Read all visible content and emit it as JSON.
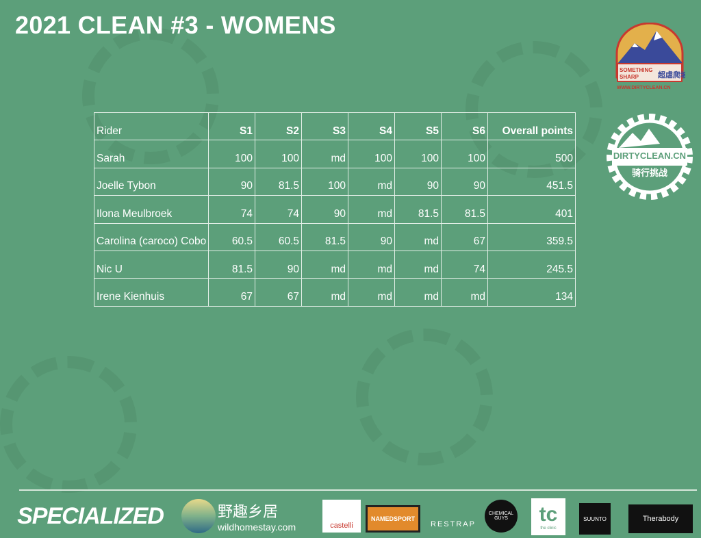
{
  "title": "2021 CLEAN #3 - WOMENS",
  "logos": {
    "top": {
      "line1": "SOMETHING",
      "line2": "SHARP",
      "cn": "超虐爬坡线",
      "url": "WWW.DIRTYCLEAN.CN"
    },
    "gear": {
      "name": "DIRTYCLEAN.CN",
      "cn": "骑行挑战"
    }
  },
  "table": {
    "headers": [
      "Rider",
      "S1",
      "S2",
      "S3",
      "S4",
      "S5",
      "S6",
      "Overall points"
    ],
    "rows": [
      [
        "Sarah",
        "100",
        "100",
        "md",
        "100",
        "100",
        "100",
        "500"
      ],
      [
        "Joelle Tybon",
        "90",
        "81.5",
        "100",
        "md",
        "90",
        "90",
        "451.5"
      ],
      [
        "Ilona Meulbroek",
        "74",
        "74",
        "90",
        "md",
        "81.5",
        "81.5",
        "401"
      ],
      [
        "Carolina (caroco) Cobo",
        "60.5",
        "60.5",
        "81.5",
        "90",
        "md",
        "67",
        "359.5"
      ],
      [
        "Nic U",
        "81.5",
        "90",
        "md",
        "md",
        "md",
        "74",
        "245.5"
      ],
      [
        "Irene Kienhuis",
        "67",
        "67",
        "md",
        "md",
        "md",
        "md",
        "134"
      ]
    ]
  },
  "sponsors": {
    "specialized": "SPECIALIZED",
    "wild_cn": "野趣乡居",
    "wild": "wildhomestay.com",
    "castelli": "castelli",
    "namedsport": "NAMEDSPORT",
    "restrap": "RESTRAP",
    "chemical": "CHEMICAL GUYS",
    "tc": "tc",
    "tc_sub": "the clinic",
    "suunto": "SUUNTO",
    "therabody": "Therabody"
  }
}
